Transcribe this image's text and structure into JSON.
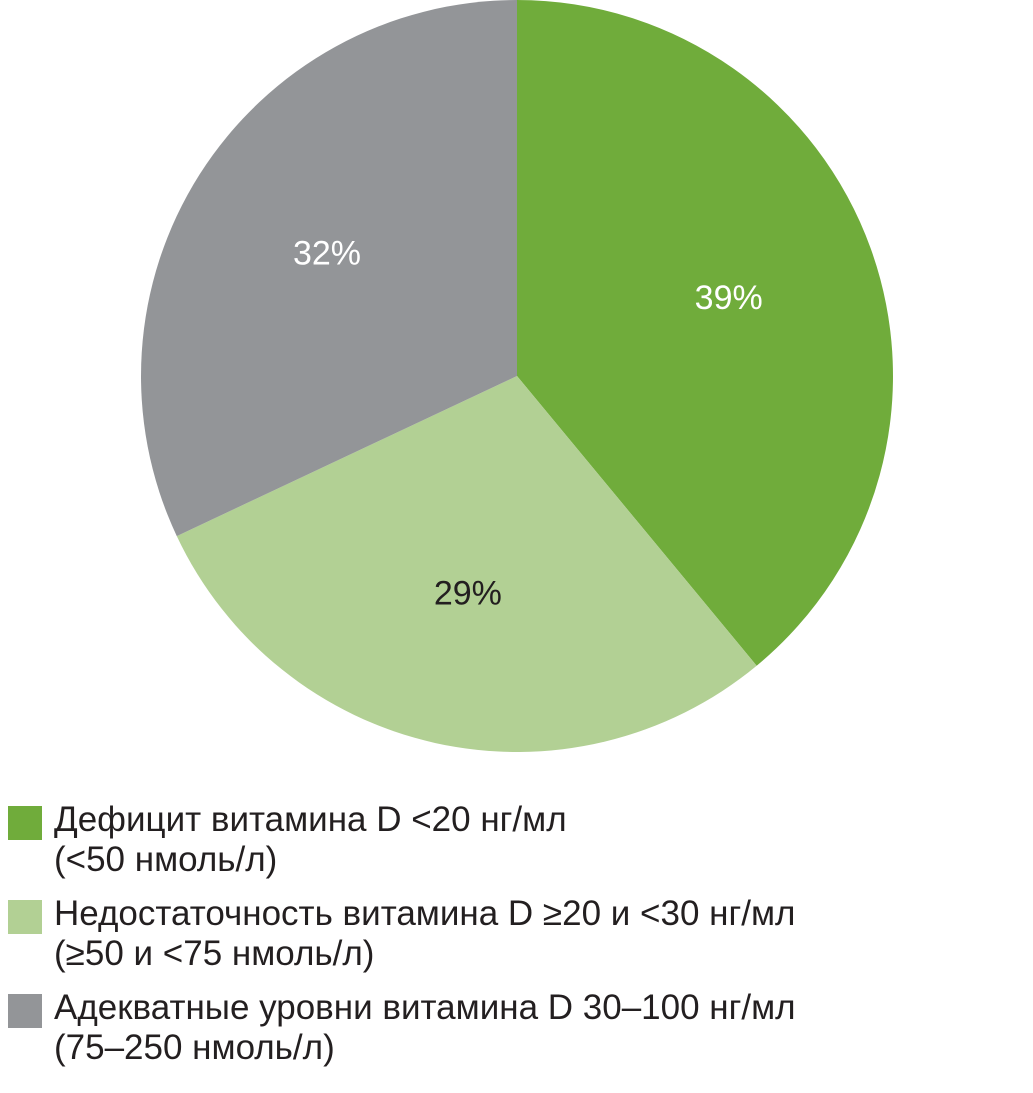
{
  "chart_data": {
    "type": "pie",
    "title": "",
    "slices": [
      {
        "label_line1": "Дефицит витамина D <20 нг/мл",
        "label_line2": "(<50 нмоль/л)",
        "value": 39,
        "value_label": "39%",
        "color": "#70ac3b",
        "label_color": "#ffffff"
      },
      {
        "label_line1": "Недостаточность витамина D ≥20 и <30 нг/мл",
        "label_line2": "(≥50 и <75 нмоль/л)",
        "value": 29,
        "value_label": "29%",
        "color": "#b2d094",
        "label_color": "#231f20"
      },
      {
        "label_line1": "Адекватные уровни витамина D 30–100 нг/мл",
        "label_line2": "(75–250 нмоль/л)",
        "value": 32,
        "value_label": "32%",
        "color": "#939598",
        "label_color": "#ffffff"
      }
    ],
    "start": "12 o'clock",
    "direction": "clockwise",
    "legend_position": "bottom"
  }
}
